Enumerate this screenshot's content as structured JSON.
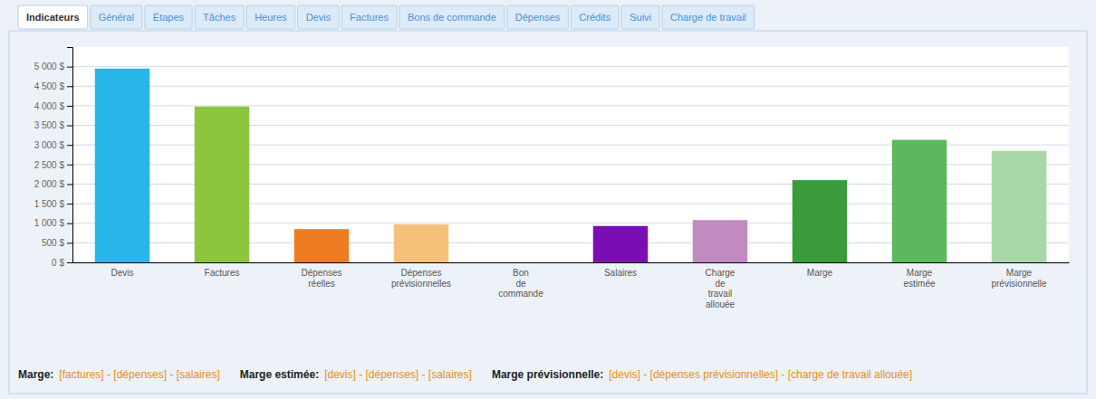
{
  "chart_data": {
    "type": "bar",
    "tabs": [
      "Indicateurs",
      "Général",
      "Étapes",
      "Tâches",
      "Heures",
      "Devis",
      "Factures",
      "Bons de commande",
      "Dépenses",
      "Crédits",
      "Suivi",
      "Charge de travail"
    ],
    "categories": [
      "Devis",
      "Factures",
      "Dépenses\nréelles",
      "Dépenses\nprévisionnelles",
      "Bon\nde\ncommande",
      "Salaires",
      "Charge\nde\ntravail\nallouée",
      "Marge",
      "Marge\nestimée",
      "Marge\nprévisionnelle"
    ],
    "values": [
      4950,
      3980,
      850,
      970,
      0,
      930,
      1080,
      2100,
      3130,
      2850
    ],
    "colors": [
      "#29b6e8",
      "#8dc53e",
      "#f07c21",
      "#f5c07a",
      "#cccccc",
      "#7b0db5",
      "#c08cc0",
      "#3a9b3a",
      "#5cb85c",
      "#a8d8a8"
    ],
    "ylim": [
      0,
      5500
    ],
    "yticks": [
      {
        "value": 0,
        "label": "0 $"
      },
      {
        "value": 500,
        "label": "500 $"
      },
      {
        "value": 1000,
        "label": "1 000 $"
      },
      {
        "value": 1500,
        "label": "1 500 $"
      },
      {
        "value": 2000,
        "label": "2 000 $"
      },
      {
        "value": 2500,
        "label": "2 500 $"
      },
      {
        "value": 3000,
        "label": "3 000 $"
      },
      {
        "value": 3500,
        "label": "3 500 $"
      },
      {
        "value": 4000,
        "label": "4 000 $"
      },
      {
        "value": 4500,
        "label": "4 500 $"
      },
      {
        "value": 5000,
        "label": "5 000 $"
      }
    ],
    "grid": true,
    "annotations": [
      {
        "text": "Marge:",
        "color": "#222222"
      },
      {
        "text": "[factures] - [dépenses] - [salaires]",
        "color": "#e09020"
      },
      {
        "text": "Marge estimée:",
        "color": "#222222"
      },
      {
        "text": "[devis] - [dépenses] - [salaires]",
        "color": "#e09020"
      },
      {
        "text": "Marge prévisionnelle:",
        "color": "#222222"
      },
      {
        "text": "[devis] - [dépenses prévisionnelles] - [charge de travail allouée]",
        "color": "#e09020"
      }
    ]
  }
}
